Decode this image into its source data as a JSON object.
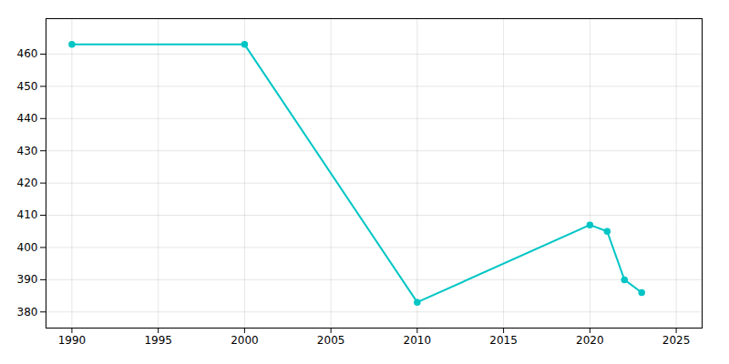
{
  "chart_data": {
    "type": "line",
    "x": [
      1990,
      2000,
      2010,
      2020,
      2021,
      2022,
      2023
    ],
    "values": [
      463,
      463,
      383,
      407,
      405,
      390,
      386
    ],
    "color": "#00C5C5",
    "marker": "circle",
    "xlim": [
      1988.5,
      2026.5
    ],
    "ylim": [
      375,
      471
    ],
    "xticks": [
      1990,
      1995,
      2000,
      2005,
      2010,
      2015,
      2020,
      2025
    ],
    "yticks": [
      380,
      390,
      400,
      410,
      420,
      430,
      440,
      450,
      460
    ],
    "grid": true
  }
}
